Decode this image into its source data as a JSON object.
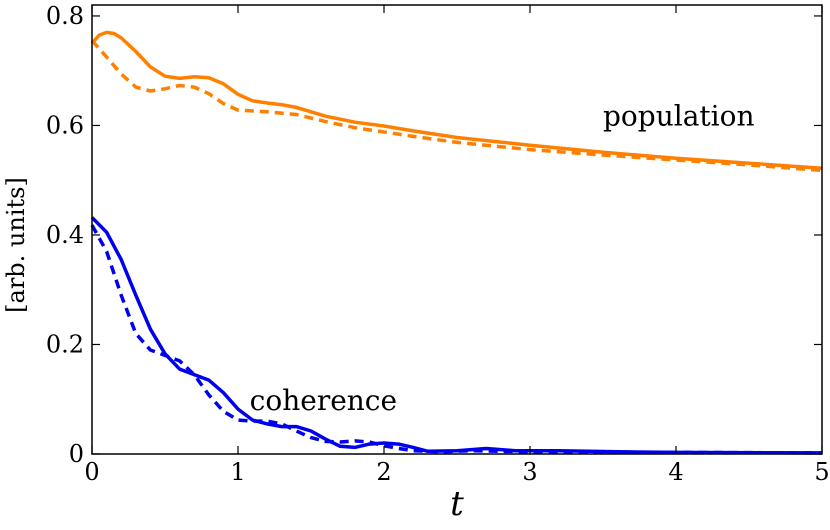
{
  "chart_data": {
    "type": "line",
    "title": "",
    "xlabel": "t",
    "ylabel": "[arb. units]",
    "xlim": [
      0,
      5
    ],
    "ylim": [
      0,
      0.82
    ],
    "grid": false,
    "legend": "none",
    "x_ticks": [
      {
        "value": 0,
        "label": "0"
      },
      {
        "value": 1,
        "label": "1"
      },
      {
        "value": 2,
        "label": "2"
      },
      {
        "value": 3,
        "label": "3"
      },
      {
        "value": 4,
        "label": "4"
      },
      {
        "value": 5,
        "label": "5"
      }
    ],
    "y_ticks": [
      {
        "value": 0,
        "label": "0"
      },
      {
        "value": 0.2,
        "label": "0.2"
      },
      {
        "value": 0.4,
        "label": "0.4"
      },
      {
        "value": 0.6,
        "label": "0.6"
      },
      {
        "value": 0.8,
        "label": "0.8"
      }
    ],
    "annotations": [
      {
        "text": "population",
        "x": 3.5,
        "y": 0.6
      },
      {
        "text": "coherence",
        "x": 1.08,
        "y": 0.08
      }
    ],
    "series": [
      {
        "color": "#ff8000",
        "style": "solid",
        "points": [
          [
            0,
            0.75
          ],
          [
            0.05,
            0.765
          ],
          [
            0.1,
            0.77
          ],
          [
            0.15,
            0.768
          ],
          [
            0.2,
            0.76
          ],
          [
            0.3,
            0.735
          ],
          [
            0.4,
            0.707
          ],
          [
            0.5,
            0.69
          ],
          [
            0.6,
            0.686
          ],
          [
            0.7,
            0.689
          ],
          [
            0.8,
            0.687
          ],
          [
            0.9,
            0.676
          ],
          [
            1.0,
            0.657
          ],
          [
            1.1,
            0.645
          ],
          [
            1.2,
            0.641
          ],
          [
            1.3,
            0.638
          ],
          [
            1.4,
            0.633
          ],
          [
            1.5,
            0.625
          ],
          [
            1.6,
            0.617
          ],
          [
            1.8,
            0.606
          ],
          [
            2.0,
            0.599
          ],
          [
            2.2,
            0.59
          ],
          [
            2.5,
            0.578
          ],
          [
            3.0,
            0.564
          ],
          [
            3.5,
            0.551
          ],
          [
            4.0,
            0.54
          ],
          [
            4.5,
            0.531
          ],
          [
            5.0,
            0.522
          ]
        ]
      },
      {
        "color": "#ff8000",
        "style": "dashed",
        "points": [
          [
            0,
            0.755
          ],
          [
            0.1,
            0.725
          ],
          [
            0.2,
            0.694
          ],
          [
            0.3,
            0.67
          ],
          [
            0.4,
            0.663
          ],
          [
            0.5,
            0.667
          ],
          [
            0.6,
            0.673
          ],
          [
            0.7,
            0.67
          ],
          [
            0.8,
            0.658
          ],
          [
            0.9,
            0.64
          ],
          [
            1.0,
            0.628
          ],
          [
            1.2,
            0.625
          ],
          [
            1.4,
            0.62
          ],
          [
            1.6,
            0.607
          ],
          [
            1.8,
            0.596
          ],
          [
            2.0,
            0.588
          ],
          [
            2.2,
            0.58
          ],
          [
            2.5,
            0.569
          ],
          [
            3.0,
            0.556
          ],
          [
            3.5,
            0.546
          ],
          [
            4.0,
            0.537
          ],
          [
            4.5,
            0.528
          ],
          [
            5.0,
            0.518
          ]
        ]
      },
      {
        "color": "#0000ee",
        "style": "solid",
        "points": [
          [
            0,
            0.432
          ],
          [
            0.1,
            0.405
          ],
          [
            0.2,
            0.355
          ],
          [
            0.3,
            0.29
          ],
          [
            0.4,
            0.228
          ],
          [
            0.5,
            0.183
          ],
          [
            0.6,
            0.155
          ],
          [
            0.7,
            0.145
          ],
          [
            0.8,
            0.135
          ],
          [
            0.9,
            0.112
          ],
          [
            1.0,
            0.082
          ],
          [
            1.1,
            0.062
          ],
          [
            1.2,
            0.055
          ],
          [
            1.3,
            0.05
          ],
          [
            1.4,
            0.05
          ],
          [
            1.5,
            0.042
          ],
          [
            1.6,
            0.027
          ],
          [
            1.7,
            0.014
          ],
          [
            1.8,
            0.012
          ],
          [
            1.9,
            0.018
          ],
          [
            2.0,
            0.02
          ],
          [
            2.1,
            0.018
          ],
          [
            2.2,
            0.012
          ],
          [
            2.3,
            0.005
          ],
          [
            2.5,
            0.006
          ],
          [
            2.7,
            0.01
          ],
          [
            2.9,
            0.006
          ],
          [
            3.2,
            0.006
          ],
          [
            3.6,
            0.004
          ],
          [
            4.0,
            0.003
          ],
          [
            5.0,
            0.002
          ]
        ]
      },
      {
        "color": "#0000ee",
        "style": "dashed",
        "points": [
          [
            0,
            0.418
          ],
          [
            0.1,
            0.37
          ],
          [
            0.2,
            0.29
          ],
          [
            0.3,
            0.22
          ],
          [
            0.4,
            0.19
          ],
          [
            0.5,
            0.18
          ],
          [
            0.6,
            0.17
          ],
          [
            0.7,
            0.145
          ],
          [
            0.8,
            0.108
          ],
          [
            0.9,
            0.078
          ],
          [
            1.0,
            0.062
          ],
          [
            1.1,
            0.06
          ],
          [
            1.2,
            0.06
          ],
          [
            1.3,
            0.055
          ],
          [
            1.4,
            0.042
          ],
          [
            1.5,
            0.03
          ],
          [
            1.6,
            0.023
          ],
          [
            1.7,
            0.022
          ],
          [
            1.8,
            0.024
          ],
          [
            1.9,
            0.022
          ],
          [
            2.0,
            0.015
          ],
          [
            2.1,
            0.01
          ],
          [
            2.2,
            0.006
          ],
          [
            2.4,
            0.004
          ],
          [
            2.6,
            0.006
          ],
          [
            2.8,
            0.005
          ],
          [
            3.0,
            0.004
          ],
          [
            4.0,
            0.003
          ],
          [
            5.0,
            0.002
          ]
        ]
      }
    ]
  }
}
